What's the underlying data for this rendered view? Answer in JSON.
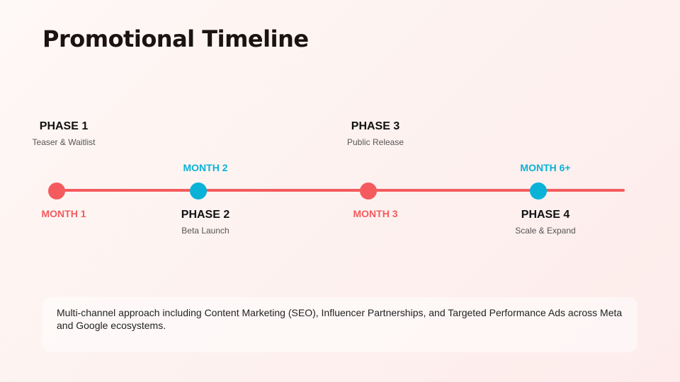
{
  "slide": {
    "title": "Promotional Timeline"
  },
  "timeline": {
    "line_color": "#f45b5e",
    "colors": {
      "red": "#f45b5e",
      "blue": "#0ab2d8"
    },
    "milestones": [
      {
        "phase": "PHASE 1",
        "description": "Teaser & Waitlist",
        "month": "MONTH 1",
        "dot_color": "red"
      },
      {
        "phase": "PHASE 2",
        "description": "Beta Launch",
        "month": "MONTH 2",
        "dot_color": "blue"
      },
      {
        "phase": "PHASE 3",
        "description": "Public Release",
        "month": "MONTH 3",
        "dot_color": "red"
      },
      {
        "phase": "PHASE 4",
        "description": "Scale & Expand",
        "month": "MONTH 6+",
        "dot_color": "blue"
      }
    ]
  },
  "note": {
    "text": "Multi-channel approach including Content Marketing (SEO), Influencer Partnerships, and Targeted Performance Ads across Meta and Google ecosystems."
  }
}
